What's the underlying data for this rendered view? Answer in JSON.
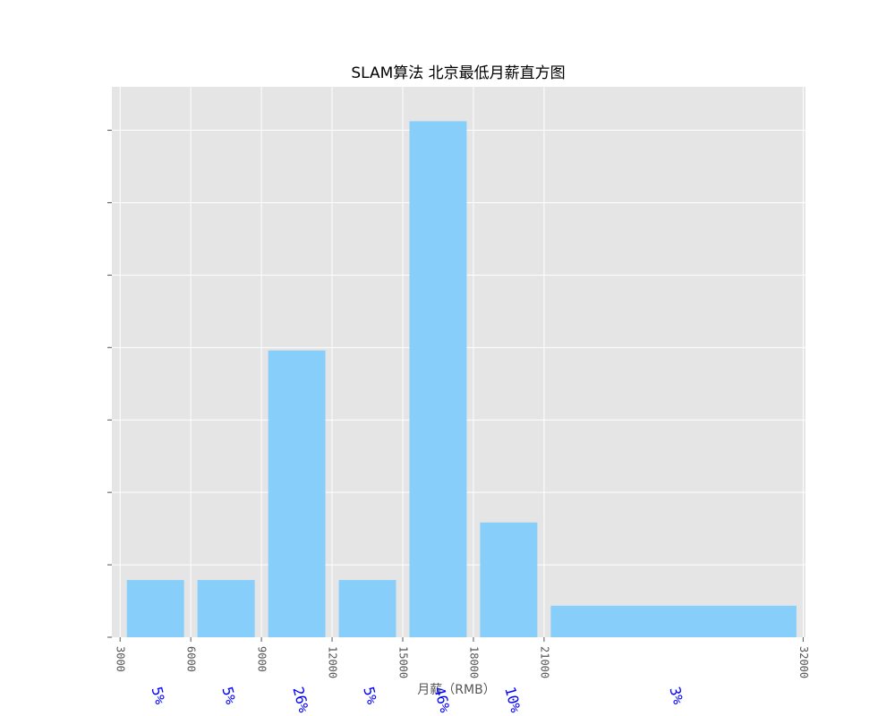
{
  "chart_data": {
    "type": "bar",
    "title": "SLAM算法 北京最低月薪直方图",
    "xlabel": "月薪（RMB）",
    "ylabel": "",
    "xlim": [
      2650,
      32100
    ],
    "ylim": [
      0,
      0.00152
    ],
    "x_ticks": [
      3000,
      6000,
      9000,
      12000,
      15000,
      18000,
      21000,
      32000
    ],
    "x_tick_labels": [
      "3000",
      "6000",
      "9000",
      "12000",
      "15000",
      "18000",
      "21000",
      "32000"
    ],
    "y_ticks": [
      0,
      0.0002,
      0.0004,
      0.0006,
      0.0008,
      0.001,
      0.0012,
      0.0014
    ],
    "grid": true,
    "background": "#e5e5e5",
    "bar_color": "#87cefa",
    "label_color": "#0000ff",
    "bins": [
      {
        "start": 3000,
        "end": 6000,
        "density": 0.000158,
        "label": "5%"
      },
      {
        "start": 6000,
        "end": 9000,
        "density": 0.000158,
        "label": "5%"
      },
      {
        "start": 9000,
        "end": 12000,
        "density": 0.000792,
        "label": "26%"
      },
      {
        "start": 12000,
        "end": 15000,
        "density": 0.000158,
        "label": "5%"
      },
      {
        "start": 15000,
        "end": 18000,
        "density": 0.001425,
        "label": "46%"
      },
      {
        "start": 18000,
        "end": 21000,
        "density": 0.000317,
        "label": "10%"
      },
      {
        "start": 21000,
        "end": 32000,
        "density": 8.7e-05,
        "label": "3%"
      }
    ]
  }
}
